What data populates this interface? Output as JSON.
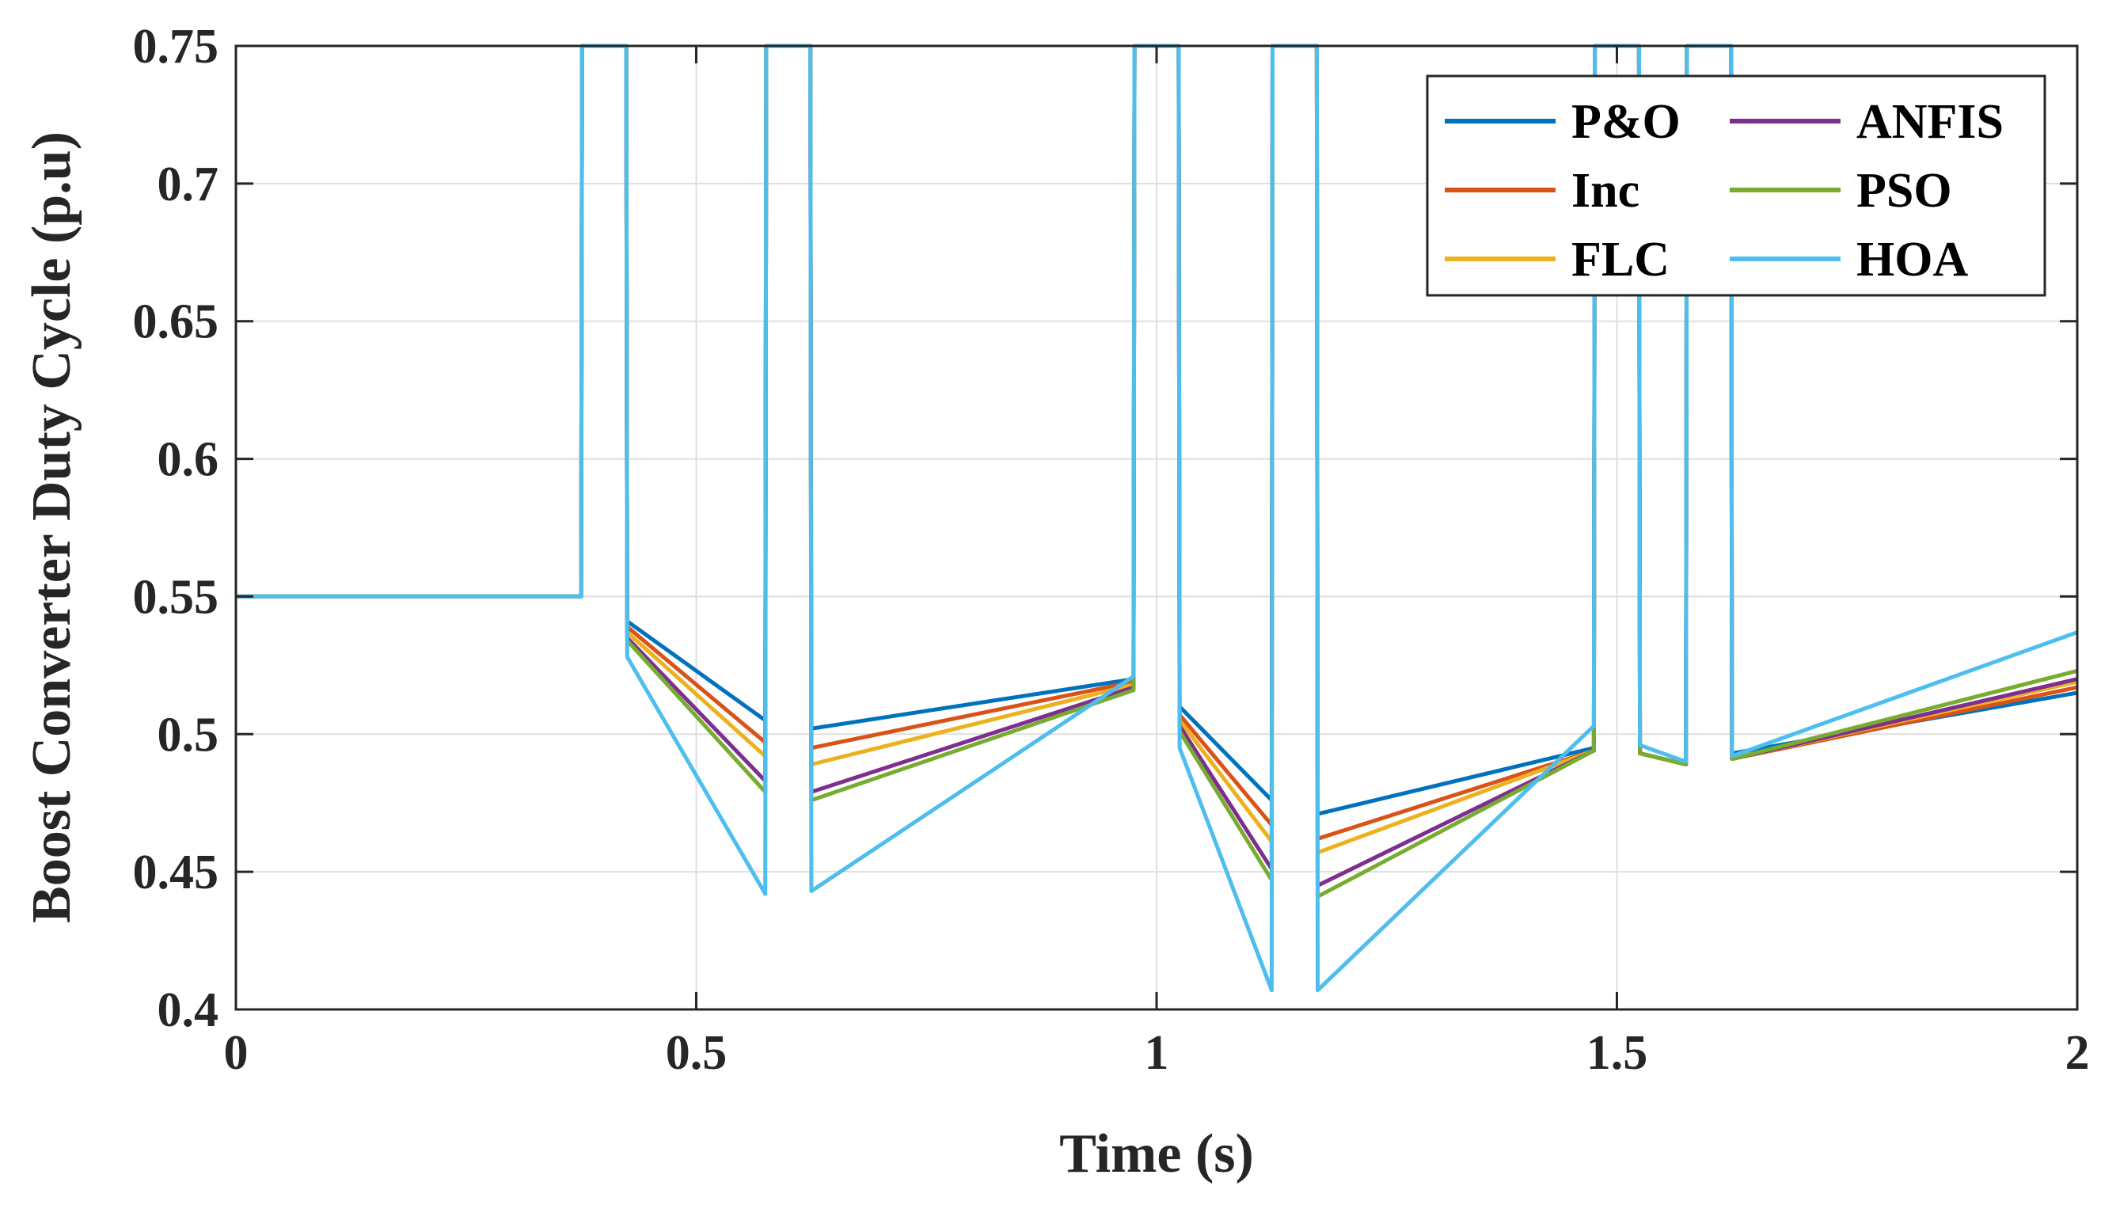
{
  "chart_data": {
    "type": "line",
    "xlabel": "Time (s)",
    "ylabel": "Boost Converter Duty Cycle (p.u)",
    "xlim": [
      0,
      2
    ],
    "ylim": [
      0.4,
      0.75
    ],
    "xticks": [
      0,
      0.5,
      1,
      1.5,
      2
    ],
    "xtick_labels": [
      "0",
      "0.5",
      "1",
      "1.5",
      "2"
    ],
    "yticks": [
      0.4,
      0.45,
      0.5,
      0.55,
      0.6,
      0.65,
      0.7,
      0.75
    ],
    "ytick_labels": [
      "0.4",
      "0.45",
      "0.5",
      "0.55",
      "0.6",
      "0.65",
      "0.7",
      "0.75"
    ],
    "grid": true,
    "legend_position": "top-right",
    "series": [
      {
        "name": "P&O",
        "color": "#0072BD",
        "x": [
          0,
          0.375,
          0.376,
          0.424,
          0.425,
          0.575,
          0.576,
          0.624,
          0.625,
          0.975,
          0.976,
          1.024,
          1.025,
          1.125,
          1.126,
          1.174,
          1.175,
          1.475,
          1.476,
          1.524,
          1.525,
          1.575,
          1.576,
          1.624,
          1.625,
          2
        ],
        "y": [
          0.55,
          0.55,
          0.75,
          0.75,
          0.541,
          0.505,
          0.75,
          0.75,
          0.502,
          0.52,
          0.75,
          0.75,
          0.51,
          0.476,
          0.75,
          0.75,
          0.471,
          0.495,
          0.75,
          0.75,
          0.493,
          0.489,
          0.75,
          0.75,
          0.493,
          0.515
        ]
      },
      {
        "name": "Inc",
        "color": "#D95319",
        "x": [
          0,
          0.375,
          0.376,
          0.424,
          0.425,
          0.575,
          0.576,
          0.624,
          0.625,
          0.975,
          0.976,
          1.024,
          1.025,
          1.125,
          1.126,
          1.174,
          1.175,
          1.475,
          1.476,
          1.524,
          1.525,
          1.575,
          1.576,
          1.624,
          1.625,
          2
        ],
        "y": [
          0.55,
          0.55,
          0.75,
          0.75,
          0.539,
          0.497,
          0.75,
          0.75,
          0.495,
          0.519,
          0.75,
          0.75,
          0.507,
          0.467,
          0.75,
          0.75,
          0.462,
          0.494,
          0.75,
          0.75,
          0.493,
          0.489,
          0.75,
          0.75,
          0.491,
          0.517
        ]
      },
      {
        "name": "FLC",
        "color": "#EDB120",
        "x": [
          0,
          0.375,
          0.376,
          0.424,
          0.425,
          0.575,
          0.576,
          0.624,
          0.625,
          0.975,
          0.976,
          1.024,
          1.025,
          1.125,
          1.126,
          1.174,
          1.175,
          1.475,
          1.476,
          1.524,
          1.525,
          1.575,
          1.576,
          1.624,
          1.625,
          2
        ],
        "y": [
          0.55,
          0.55,
          0.75,
          0.75,
          0.537,
          0.492,
          0.75,
          0.75,
          0.489,
          0.518,
          0.75,
          0.75,
          0.505,
          0.461,
          0.75,
          0.75,
          0.457,
          0.494,
          0.75,
          0.75,
          0.493,
          0.489,
          0.75,
          0.75,
          0.491,
          0.519
        ]
      },
      {
        "name": "ANFIS",
        "color": "#7E2F8E",
        "x": [
          0,
          0.375,
          0.376,
          0.424,
          0.425,
          0.575,
          0.576,
          0.624,
          0.625,
          0.975,
          0.976,
          1.024,
          1.025,
          1.125,
          1.126,
          1.174,
          1.175,
          1.475,
          1.476,
          1.524,
          1.525,
          1.575,
          1.576,
          1.624,
          1.625,
          2
        ],
        "y": [
          0.55,
          0.55,
          0.75,
          0.75,
          0.535,
          0.483,
          0.75,
          0.75,
          0.479,
          0.517,
          0.75,
          0.75,
          0.503,
          0.451,
          0.75,
          0.75,
          0.445,
          0.494,
          0.75,
          0.75,
          0.493,
          0.489,
          0.75,
          0.75,
          0.491,
          0.52
        ]
      },
      {
        "name": "PSO",
        "color": "#77AC30",
        "x": [
          0,
          0.375,
          0.376,
          0.424,
          0.425,
          0.575,
          0.576,
          0.624,
          0.625,
          0.975,
          0.976,
          1.024,
          1.025,
          1.125,
          1.126,
          1.174,
          1.175,
          1.475,
          1.476,
          1.524,
          1.525,
          1.575,
          1.576,
          1.624,
          1.625,
          2
        ],
        "y": [
          0.55,
          0.55,
          0.75,
          0.75,
          0.534,
          0.479,
          0.75,
          0.75,
          0.476,
          0.516,
          0.75,
          0.75,
          0.501,
          0.447,
          0.75,
          0.75,
          0.441,
          0.494,
          0.75,
          0.75,
          0.493,
          0.489,
          0.75,
          0.75,
          0.491,
          0.523
        ]
      },
      {
        "name": "HOA",
        "color": "#4DBEEE",
        "x": [
          0,
          0.375,
          0.376,
          0.424,
          0.425,
          0.575,
          0.576,
          0.624,
          0.625,
          0.975,
          0.976,
          1.024,
          1.025,
          1.125,
          1.126,
          1.174,
          1.175,
          1.475,
          1.476,
          1.524,
          1.525,
          1.575,
          1.576,
          1.624,
          1.625,
          2
        ],
        "y": [
          0.55,
          0.55,
          0.75,
          0.75,
          0.528,
          0.442,
          0.75,
          0.75,
          0.443,
          0.521,
          0.75,
          0.75,
          0.495,
          0.407,
          0.75,
          0.75,
          0.407,
          0.503,
          0.75,
          0.75,
          0.496,
          0.49,
          0.75,
          0.75,
          0.492,
          0.537
        ]
      }
    ],
    "legend": {
      "left_column": [
        "P&O",
        "Inc",
        "FLC"
      ],
      "right_column": [
        "ANFIS",
        "PSO",
        "HOA"
      ]
    }
  }
}
